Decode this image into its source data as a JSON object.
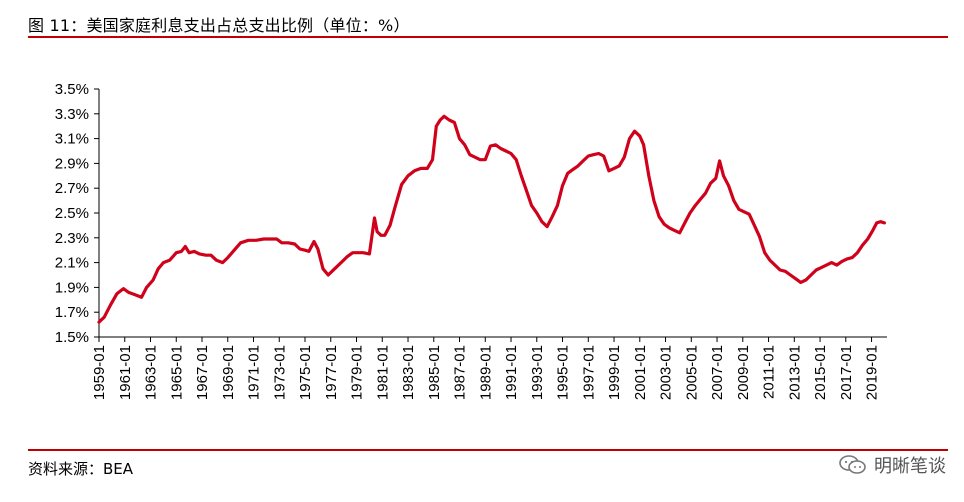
{
  "header": {
    "title": "图 11：美国家庭利息支出占总支出比例（单位：%）"
  },
  "footer": {
    "source": "资料来源：BEA",
    "watermark": "明晰笔谈"
  },
  "colors": {
    "rule": "#c00000",
    "series": "#d0021b",
    "axis": "#000000"
  },
  "icons": {
    "watermark": "wechat-icon"
  },
  "chart_data": {
    "type": "line",
    "title": "图 11：美国家庭利息支出占总支出比例（单位：%）",
    "xlabel": "",
    "ylabel": "",
    "grid": false,
    "legend": "none",
    "xlim": [
      1959.0,
      2020.2
    ],
    "ylim": [
      1.5,
      3.5
    ],
    "y_ticks": [
      1.5,
      1.7,
      1.9,
      2.1,
      2.3,
      2.5,
      2.7,
      2.9,
      3.1,
      3.3,
      3.5
    ],
    "y_tick_labels": [
      "1.5%",
      "1.7%",
      "1.9%",
      "2.1%",
      "2.3%",
      "2.5%",
      "2.7%",
      "2.9%",
      "3.1%",
      "3.3%",
      "3.5%"
    ],
    "x_tick_labels": [
      "1959-01",
      "1961-01",
      "1963-01",
      "1965-01",
      "1967-01",
      "1969-01",
      "1971-01",
      "1973-01",
      "1975-01",
      "1977-01",
      "1979-01",
      "1981-01",
      "1983-01",
      "1985-01",
      "1987-01",
      "1989-01",
      "1991-01",
      "1993-01",
      "1995-01",
      "1997-01",
      "1999-01",
      "2001-01",
      "2003-01",
      "2005-01",
      "2007-01",
      "2009-01",
      "2011-01",
      "2013-01",
      "2015-01",
      "2017-01",
      "2019-01"
    ],
    "series": [
      {
        "name": "",
        "x": [
          1959.0,
          1959.4,
          1959.9,
          1960.4,
          1960.9,
          1961.3,
          1961.8,
          1962.3,
          1962.7,
          1963.2,
          1963.6,
          1964.0,
          1964.5,
          1965.0,
          1965.4,
          1965.7,
          1966.0,
          1966.4,
          1966.8,
          1967.3,
          1967.7,
          1968.1,
          1968.6,
          1969.0,
          1969.5,
          1970.0,
          1970.6,
          1971.2,
          1971.8,
          1972.3,
          1972.8,
          1973.2,
          1973.7,
          1974.2,
          1974.6,
          1975.0,
          1975.3,
          1975.7,
          1976.0,
          1976.4,
          1976.8,
          1977.3,
          1977.8,
          1978.3,
          1978.7,
          1979.0,
          1979.5,
          1980.0,
          1980.4,
          1980.6,
          1980.9,
          1981.2,
          1981.6,
          1982.0,
          1982.5,
          1983.0,
          1983.5,
          1984.0,
          1984.5,
          1984.9,
          1985.2,
          1985.5,
          1985.8,
          1986.2,
          1986.6,
          1987.0,
          1987.4,
          1987.8,
          1988.2,
          1988.6,
          1989.0,
          1989.4,
          1989.8,
          1990.2,
          1990.6,
          1991.0,
          1991.4,
          1991.8,
          1992.2,
          1992.6,
          1993.0,
          1993.4,
          1993.8,
          1994.2,
          1994.6,
          1995.0,
          1995.4,
          1995.8,
          1996.2,
          1996.6,
          1997.0,
          1997.4,
          1997.8,
          1998.2,
          1998.6,
          1999.0,
          1999.4,
          1999.8,
          2000.2,
          2000.6,
          2001.0,
          2001.3,
          2001.7,
          2002.1,
          2002.5,
          2002.9,
          2003.3,
          2003.7,
          2004.1,
          2004.5,
          2004.9,
          2005.3,
          2005.7,
          2006.1,
          2006.5,
          2006.9,
          2007.2,
          2007.5,
          2007.9,
          2008.3,
          2008.7,
          2009.1,
          2009.5,
          2009.9,
          2010.3,
          2010.7,
          2011.1,
          2011.5,
          2011.9,
          2012.3,
          2012.7,
          2013.1,
          2013.5,
          2013.9,
          2014.3,
          2014.7,
          2015.1,
          2015.5,
          2015.9,
          2016.3,
          2016.7,
          2017.1,
          2017.5,
          2017.9,
          2018.3,
          2018.7,
          2019.1,
          2019.4,
          2019.7,
          2020.0
        ],
        "values": [
          1.62,
          1.66,
          1.76,
          1.85,
          1.89,
          1.86,
          1.84,
          1.82,
          1.9,
          1.96,
          2.05,
          2.1,
          2.12,
          2.18,
          2.19,
          2.23,
          2.18,
          2.19,
          2.17,
          2.16,
          2.16,
          2.12,
          2.1,
          2.14,
          2.2,
          2.26,
          2.28,
          2.28,
          2.29,
          2.29,
          2.29,
          2.26,
          2.26,
          2.25,
          2.21,
          2.2,
          2.19,
          2.27,
          2.21,
          2.05,
          2.0,
          2.05,
          2.1,
          2.15,
          2.18,
          2.18,
          2.18,
          2.17,
          2.46,
          2.35,
          2.32,
          2.32,
          2.4,
          2.55,
          2.73,
          2.8,
          2.84,
          2.86,
          2.86,
          2.93,
          3.2,
          3.25,
          3.28,
          3.25,
          3.23,
          3.1,
          3.05,
          2.97,
          2.95,
          2.93,
          2.93,
          3.04,
          3.05,
          3.02,
          3.0,
          2.98,
          2.93,
          2.8,
          2.68,
          2.56,
          2.5,
          2.43,
          2.39,
          2.47,
          2.56,
          2.72,
          2.82,
          2.85,
          2.88,
          2.92,
          2.96,
          2.97,
          2.98,
          2.96,
          2.84,
          2.86,
          2.88,
          2.95,
          3.1,
          3.16,
          3.12,
          3.05,
          2.8,
          2.6,
          2.47,
          2.41,
          2.38,
          2.36,
          2.34,
          2.42,
          2.5,
          2.56,
          2.61,
          2.66,
          2.74,
          2.78,
          2.92,
          2.8,
          2.72,
          2.6,
          2.53,
          2.51,
          2.49,
          2.4,
          2.31,
          2.18,
          2.12,
          2.08,
          2.04,
          2.03,
          2.0,
          1.97,
          1.94,
          1.96,
          2.0,
          2.04,
          2.06,
          2.08,
          2.1,
          2.08,
          2.11,
          2.13,
          2.14,
          2.18,
          2.24,
          2.29,
          2.36,
          2.42,
          2.43,
          2.42
        ]
      }
    ]
  }
}
